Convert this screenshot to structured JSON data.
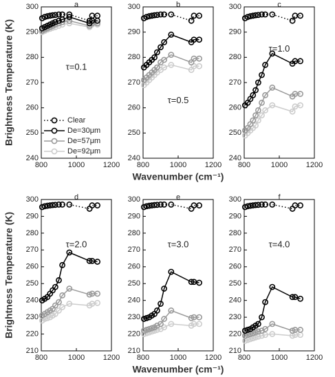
{
  "chart_data": [
    {
      "type": "line",
      "title": "a",
      "annotation": "τ=0.1",
      "ylabel": "Brightness Temperature (K)",
      "legend": "lower left",
      "x": [
        805,
        820,
        835,
        850,
        865,
        880,
        900,
        920,
        960,
        1075,
        1090,
        1120
      ],
      "xlim": [
        800,
        1200
      ],
      "xticks": [
        800,
        1000,
        1200
      ],
      "ylim": [
        240,
        300
      ],
      "yticks": [
        240,
        250,
        260,
        270,
        280,
        290,
        300
      ],
      "series": [
        {
          "name": "Clear",
          "color": "#000000",
          "linestyle": "dotted",
          "values": [
            295.5,
            296,
            296.3,
            296.5,
            296.7,
            296.8,
            297,
            297,
            297,
            294.5,
            296.5,
            296.5
          ]
        },
        {
          "name": "De=30μm",
          "color": "#000000",
          "linestyle": "solid",
          "values": [
            291.5,
            292,
            292.5,
            293,
            293.5,
            294,
            294.5,
            295,
            296,
            293.5,
            294.5,
            294.5
          ]
        },
        {
          "name": "De=57μm",
          "color": "#999999",
          "linestyle": "solid",
          "values": [
            290.5,
            291,
            291.5,
            292,
            292.5,
            293,
            293.5,
            294,
            294.5,
            292.5,
            293.5,
            293.5
          ]
        },
        {
          "name": "De=92μm",
          "color": "#cccccc",
          "linestyle": "solid",
          "values": [
            290,
            290.5,
            291,
            291.3,
            291.7,
            292,
            292.5,
            293,
            293.5,
            292,
            293,
            293
          ]
        }
      ]
    },
    {
      "type": "line",
      "title": "b",
      "annotation": "τ=0.5",
      "xlabel": "Wavenumber (cm⁻¹)",
      "x": [
        805,
        820,
        835,
        850,
        865,
        880,
        900,
        920,
        960,
        1075,
        1090,
        1120
      ],
      "xlim": [
        800,
        1200
      ],
      "xticks": [
        800,
        1000,
        1200
      ],
      "ylim": [
        240,
        300
      ],
      "yticks": [
        240,
        250,
        260,
        270,
        280,
        290,
        300
      ],
      "series": [
        {
          "name": "Clear",
          "color": "#000000",
          "linestyle": "dotted",
          "values": [
            295.5,
            296,
            296.3,
            296.5,
            296.7,
            296.8,
            297,
            297,
            297,
            294.5,
            296.5,
            296.5
          ]
        },
        {
          "name": "De=30μm",
          "color": "#000000",
          "linestyle": "solid",
          "values": [
            276,
            277,
            278,
            279,
            280,
            282,
            284,
            286,
            289,
            286,
            287,
            287
          ]
        },
        {
          "name": "De=57μm",
          "color": "#999999",
          "linestyle": "solid",
          "values": [
            271,
            272,
            273,
            274,
            275,
            276,
            278,
            279,
            281,
            278,
            279.5,
            279.5
          ]
        },
        {
          "name": "De=92μm",
          "color": "#cccccc",
          "linestyle": "solid",
          "values": [
            269,
            270,
            271,
            272,
            273,
            274,
            275,
            276,
            277,
            275,
            276.5,
            276.5
          ]
        }
      ]
    },
    {
      "type": "line",
      "title": "c",
      "annotation": "τ=1.0",
      "x": [
        805,
        820,
        835,
        850,
        865,
        880,
        900,
        920,
        960,
        1075,
        1090,
        1120
      ],
      "xlim": [
        800,
        1200
      ],
      "xticks": [
        800,
        1000,
        1200
      ],
      "ylim": [
        240,
        300
      ],
      "yticks": [
        240,
        250,
        260,
        270,
        280,
        290,
        300
      ],
      "series": [
        {
          "name": "Clear",
          "color": "#000000",
          "linestyle": "dotted",
          "values": [
            295.5,
            296,
            296.3,
            296.5,
            296.7,
            296.8,
            297,
            297,
            297,
            294.5,
            296.5,
            296.5
          ]
        },
        {
          "name": "De=30μm",
          "color": "#000000",
          "linestyle": "solid",
          "values": [
            261,
            262,
            263.5,
            265,
            267,
            270,
            273,
            277,
            281.5,
            277.5,
            278.5,
            278.5
          ]
        },
        {
          "name": "De=57μm",
          "color": "#999999",
          "linestyle": "solid",
          "values": [
            251,
            252,
            253.5,
            255,
            257,
            259,
            262,
            265,
            268,
            264.5,
            265.5,
            265.5
          ]
        },
        {
          "name": "De=92μm",
          "color": "#cccccc",
          "linestyle": "solid",
          "values": [
            249,
            250,
            251,
            252,
            253,
            255,
            257,
            259,
            261,
            258.5,
            260.5,
            261
          ]
        }
      ]
    },
    {
      "type": "line",
      "title": "d",
      "annotation": "τ=2.0",
      "ylabel": "Brightness Temperature (K)",
      "x": [
        805,
        820,
        835,
        850,
        865,
        880,
        900,
        920,
        960,
        1075,
        1090,
        1120
      ],
      "xlim": [
        800,
        1200
      ],
      "xticks": [
        800,
        1000,
        1200
      ],
      "ylim": [
        210,
        300
      ],
      "yticks": [
        210,
        220,
        230,
        240,
        250,
        260,
        270,
        280,
        290,
        300
      ],
      "series": [
        {
          "name": "Clear",
          "color": "#000000",
          "linestyle": "dotted",
          "values": [
            295.5,
            296,
            296.3,
            296.5,
            296.7,
            296.8,
            297,
            297,
            297,
            294.5,
            296.5,
            296.5
          ]
        },
        {
          "name": "De=30μm",
          "color": "#000000",
          "linestyle": "solid",
          "values": [
            240,
            241,
            242,
            244,
            246,
            248,
            252,
            261,
            268.5,
            263.5,
            263.5,
            263
          ]
        },
        {
          "name": "De=57μm",
          "color": "#999999",
          "linestyle": "solid",
          "values": [
            231,
            232,
            233,
            234,
            235,
            237,
            239,
            243,
            247,
            243.5,
            244,
            244
          ]
        },
        {
          "name": "De=92μm",
          "color": "#cccccc",
          "linestyle": "solid",
          "values": [
            228,
            229,
            229.5,
            230,
            231,
            232,
            234,
            236,
            238,
            237,
            238,
            238.5
          ]
        }
      ]
    },
    {
      "type": "line",
      "title": "e",
      "annotation": "τ=3.0",
      "xlabel": "Wavenumber (cm⁻¹)",
      "x": [
        805,
        820,
        835,
        850,
        865,
        880,
        900,
        920,
        960,
        1075,
        1090,
        1120
      ],
      "xlim": [
        800,
        1200
      ],
      "xticks": [
        800,
        1000,
        1200
      ],
      "ylim": [
        210,
        300
      ],
      "yticks": [
        210,
        220,
        230,
        240,
        250,
        260,
        270,
        280,
        290,
        300
      ],
      "series": [
        {
          "name": "Clear",
          "color": "#000000",
          "linestyle": "dotted",
          "values": [
            295.5,
            296,
            296.3,
            296.5,
            296.7,
            296.8,
            297,
            297,
            297,
            294.5,
            296.5,
            296.5
          ]
        },
        {
          "name": "De=30μm",
          "color": "#000000",
          "linestyle": "solid",
          "values": [
            229,
            229.5,
            230,
            231,
            232,
            234,
            238,
            247,
            257,
            251,
            251,
            250.5
          ]
        },
        {
          "name": "De=57μm",
          "color": "#999999",
          "linestyle": "solid",
          "values": [
            222,
            222.5,
            223,
            223.5,
            224,
            225,
            226,
            229,
            234,
            229.5,
            230,
            230
          ]
        },
        {
          "name": "De=92μm",
          "color": "#cccccc",
          "linestyle": "solid",
          "values": [
            220,
            220.5,
            221,
            221.5,
            222,
            222.5,
            223,
            224,
            226,
            225,
            226,
            226
          ]
        }
      ]
    },
    {
      "type": "line",
      "title": "f",
      "annotation": "τ=4.0",
      "x": [
        805,
        820,
        835,
        850,
        865,
        880,
        900,
        920,
        960,
        1075,
        1090,
        1120
      ],
      "xlim": [
        800,
        1200
      ],
      "xticks": [
        800,
        1000,
        1200
      ],
      "ylim": [
        210,
        300
      ],
      "yticks": [
        210,
        220,
        230,
        240,
        250,
        260,
        270,
        280,
        290,
        300
      ],
      "series": [
        {
          "name": "Clear",
          "color": "#000000",
          "linestyle": "dotted",
          "values": [
            295.5,
            296,
            296.3,
            296.5,
            296.7,
            296.8,
            297,
            297,
            297,
            294.5,
            296.5,
            296.5
          ]
        },
        {
          "name": "De=30μm",
          "color": "#000000",
          "linestyle": "solid",
          "values": [
            222,
            222.5,
            223,
            224,
            225,
            226,
            230,
            239,
            248,
            242,
            242,
            241
          ]
        },
        {
          "name": "De=57μm",
          "color": "#999999",
          "linestyle": "solid",
          "values": [
            219,
            219.5,
            220,
            220.5,
            221,
            221.5,
            222,
            223,
            226,
            222,
            222.5,
            222.5
          ]
        },
        {
          "name": "De=92μm",
          "color": "#cccccc",
          "linestyle": "solid",
          "values": [
            216,
            216.5,
            217,
            217.5,
            218,
            218.5,
            219,
            219.5,
            220,
            219,
            219.5,
            219.5
          ]
        }
      ]
    }
  ]
}
